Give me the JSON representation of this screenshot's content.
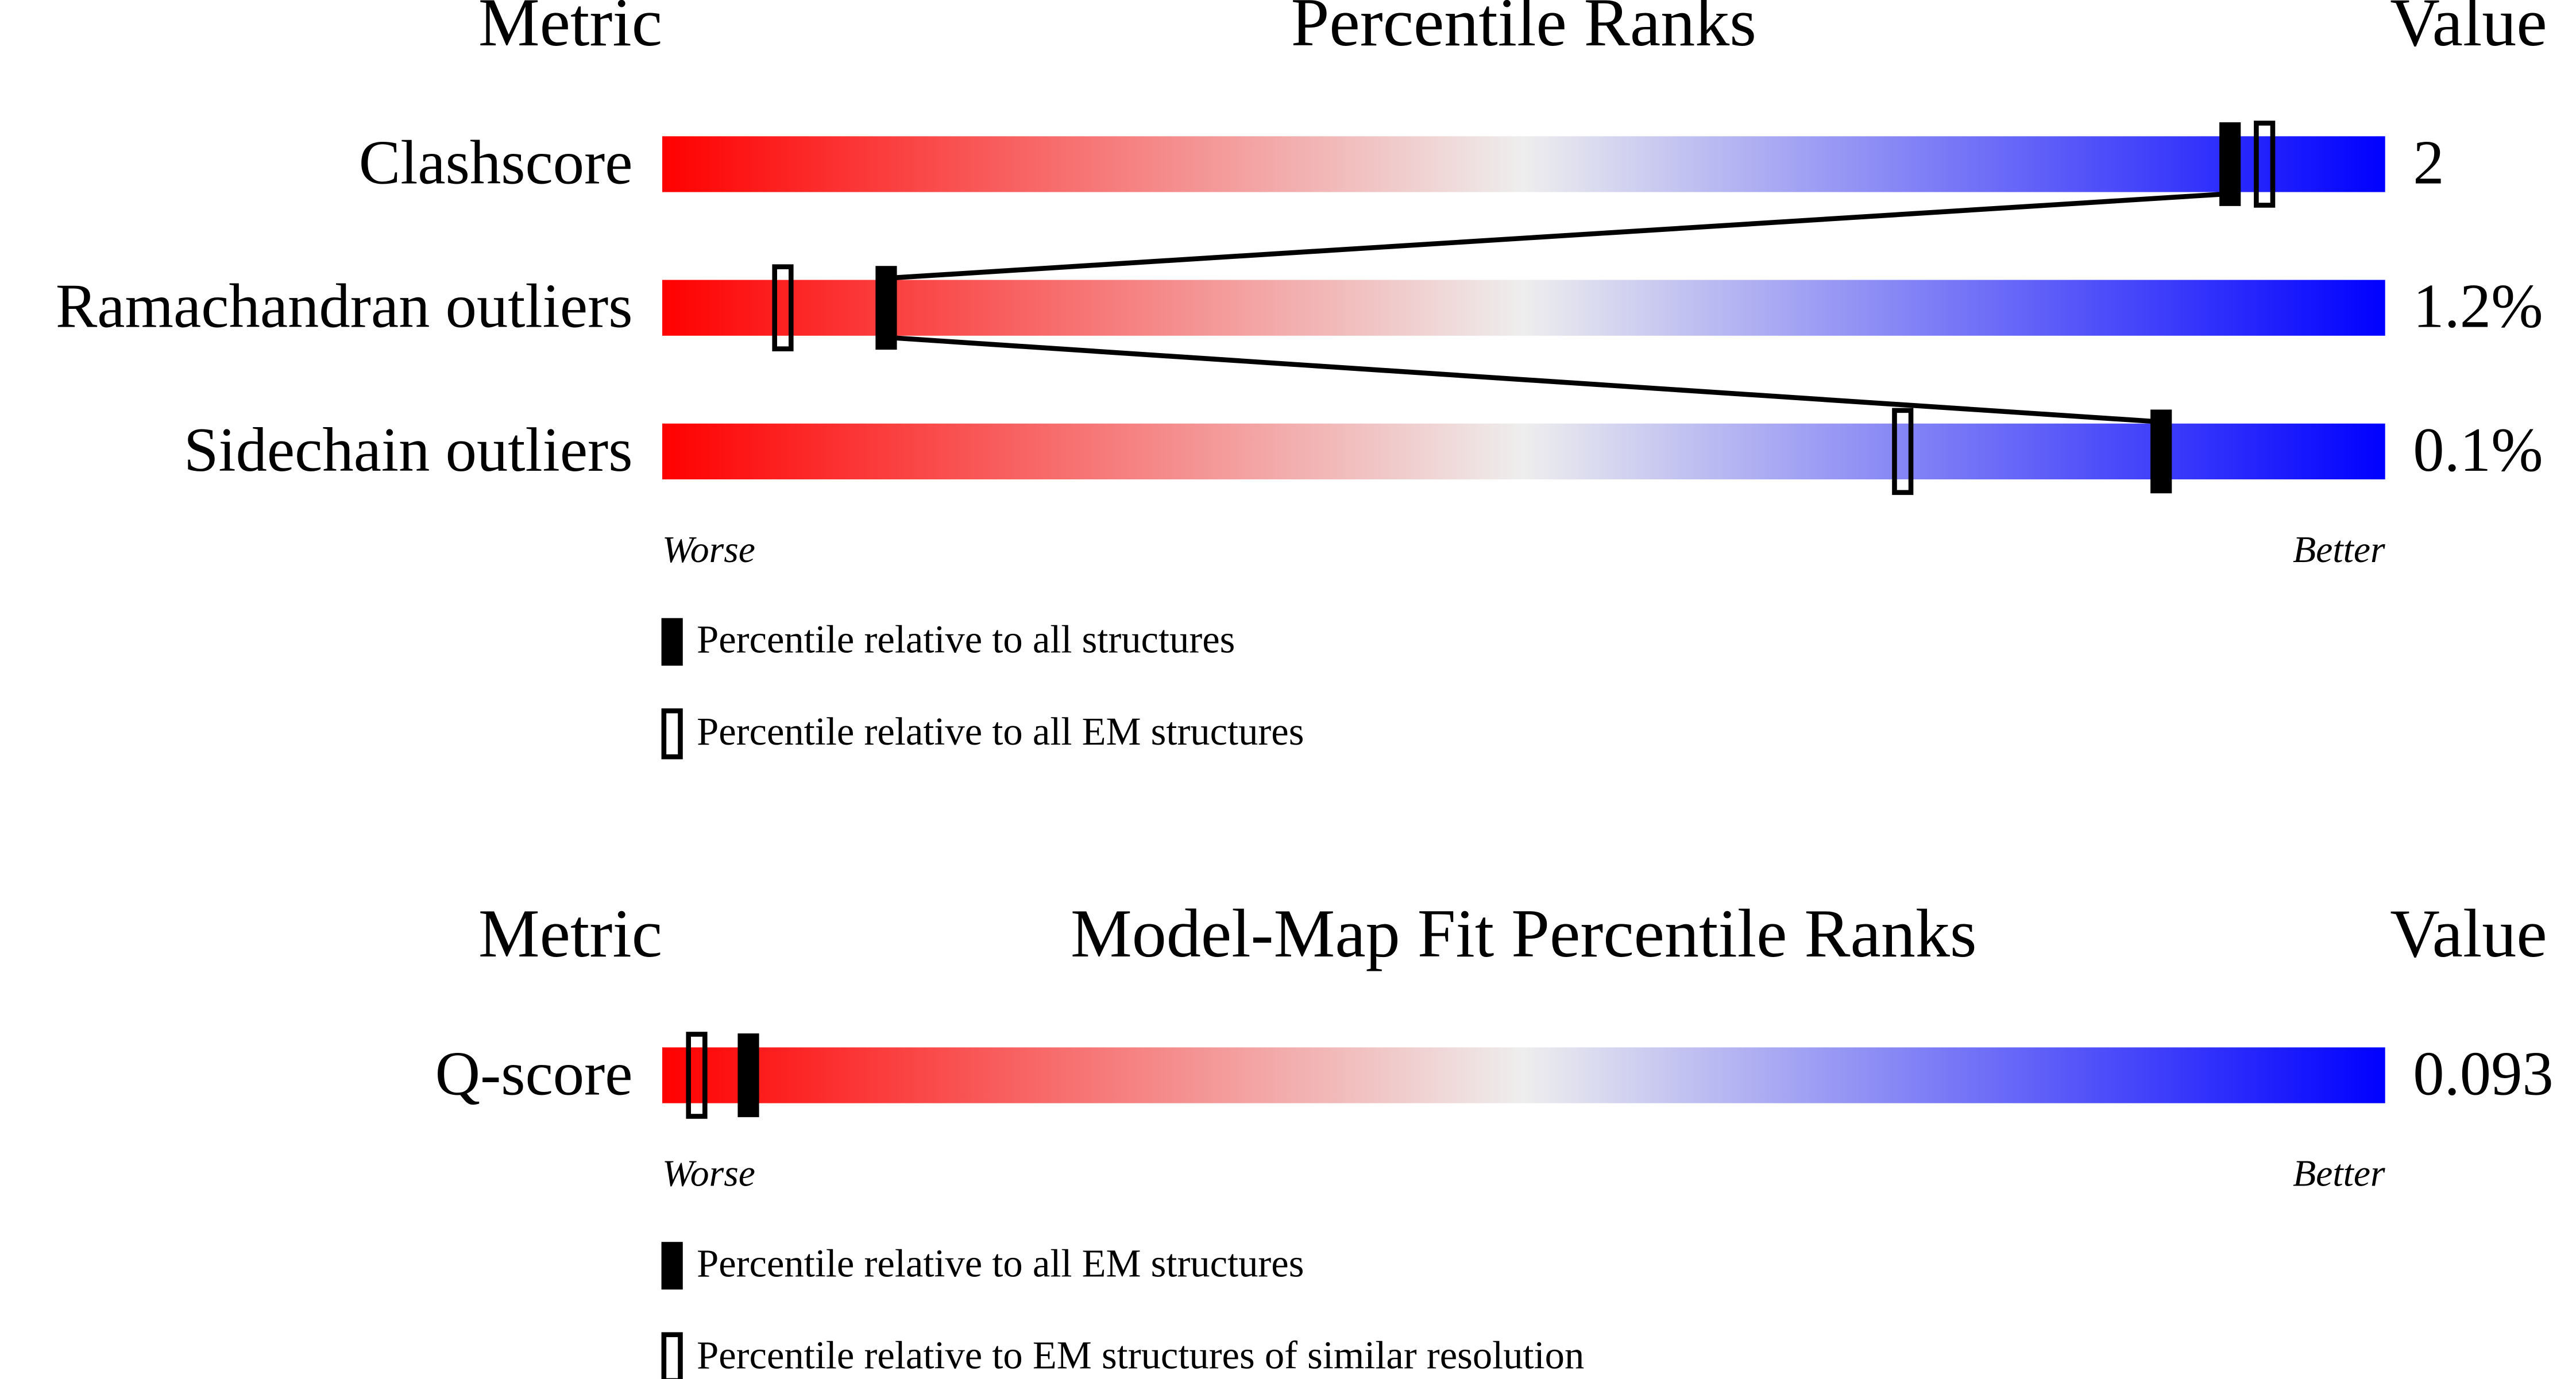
{
  "chart_data": [
    {
      "type": "percentile",
      "header": {
        "metric": "Metric",
        "title": "Percentile Ranks",
        "value": "Value"
      },
      "categories": [
        "Clashscore",
        "Ramachandran outliers",
        "Sidechain outliers"
      ],
      "metric_values": [
        "2",
        "1.2%",
        "0.1%"
      ],
      "series": [
        {
          "name": "Percentile relative to all structures",
          "style": "filled",
          "color": "#000000",
          "values": [
            91,
            13,
            87
          ]
        },
        {
          "name": "Percentile relative to all EM structures",
          "style": "open",
          "color": "#000000",
          "values": [
            93,
            7,
            72
          ]
        }
      ],
      "xlim": [
        0,
        100
      ],
      "axis_labels": {
        "low": "Worse",
        "high": "Better"
      },
      "gradient": [
        "#ff0000",
        "#eeeeee",
        "#0000ff"
      ],
      "connect_series": 0
    },
    {
      "type": "percentile",
      "header": {
        "metric": "Metric",
        "title": "Model-Map Fit Percentile Ranks",
        "value": "Value"
      },
      "categories": [
        "Q-score"
      ],
      "metric_values": [
        "0.093"
      ],
      "series": [
        {
          "name": "Percentile relative to all EM structures",
          "style": "filled",
          "color": "#000000",
          "values": [
            5
          ]
        },
        {
          "name": "Percentile relative to EM structures of similar resolution",
          "style": "open",
          "color": "#000000",
          "values": [
            2
          ]
        }
      ],
      "xlim": [
        0,
        100
      ],
      "axis_labels": {
        "low": "Worse",
        "high": "Better"
      },
      "gradient": [
        "#ff0000",
        "#eeeeee",
        "#0000ff"
      ],
      "connect_series": 0
    }
  ]
}
